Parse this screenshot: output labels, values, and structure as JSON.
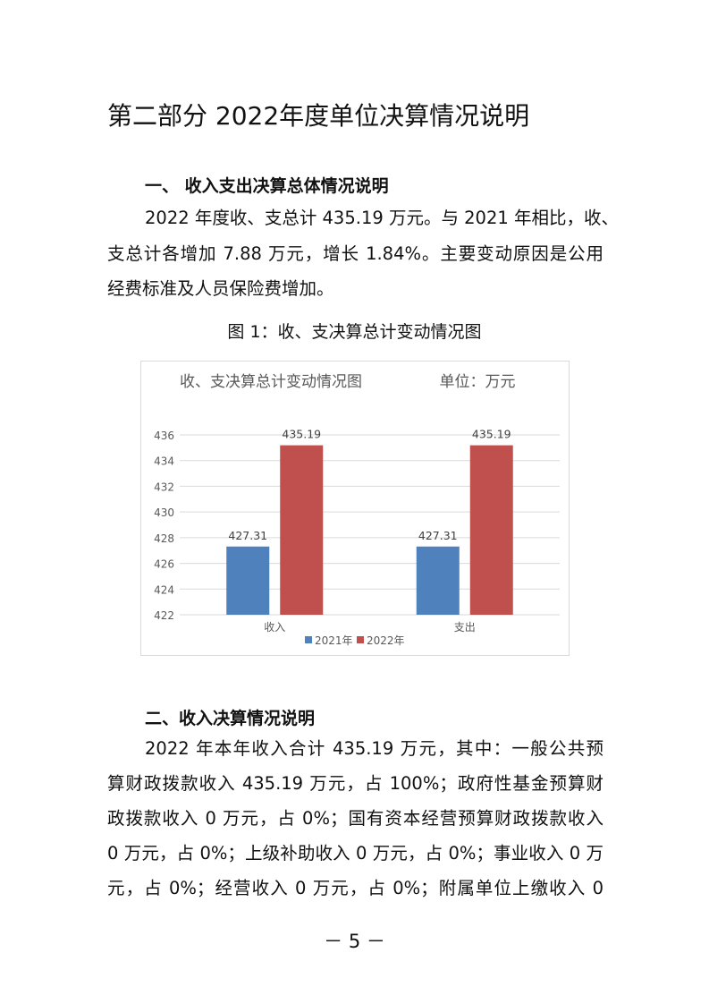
{
  "title": "第二部分 2022年度单位决算情况说明",
  "section1": {
    "heading": "一、 收入支出决算总体情况说明",
    "lines": [
      "2022 年度收、支总计 435.19 万元。与 2021 年相比，收、",
      "支总计各增加 7.88 万元，增长 1.84%。主要变动原因是公用",
      "经费标准及人员保险费增加。"
    ],
    "caption": "图 1：收、支决算总计变动情况图"
  },
  "chart_data": {
    "type": "bar",
    "title": "收、支决算总计变动情况图",
    "unit_label": "单位：万元",
    "categories": [
      "收入",
      "支出"
    ],
    "series": [
      {
        "name": "2021年",
        "values": [
          427.31,
          427.31
        ],
        "color": "#4f81bd"
      },
      {
        "name": "2022年",
        "values": [
          435.19,
          435.19
        ],
        "color": "#c0504d"
      }
    ],
    "data_labels": [
      [
        "427.31",
        "427.31"
      ],
      [
        "435.19",
        "435.19"
      ]
    ],
    "ylim": [
      422,
      436
    ],
    "yticks": [
      "422",
      "424",
      "426",
      "428",
      "430",
      "432",
      "434",
      "436"
    ],
    "grid": true,
    "legend": "bottom"
  },
  "section2": {
    "heading": "二、收入决算情况说明",
    "lines": [
      "2022 年本年收入合计 435.19 万元，其中：一般公共预",
      "算财政拨款收入 435.19 万元，占 100%；政府性基金预算财",
      "政拨款收入 0 万元，占 0%；国有资本经营预算财政拨款收入",
      "0 万元，占 0%；上级补助收入 0 万元，占 0%；事业收入 0 万",
      "元，占 0%；经营收入 0 万元，占 0%；附属单位上缴收入 0"
    ]
  },
  "footer": {
    "page": "－ 5 －"
  }
}
